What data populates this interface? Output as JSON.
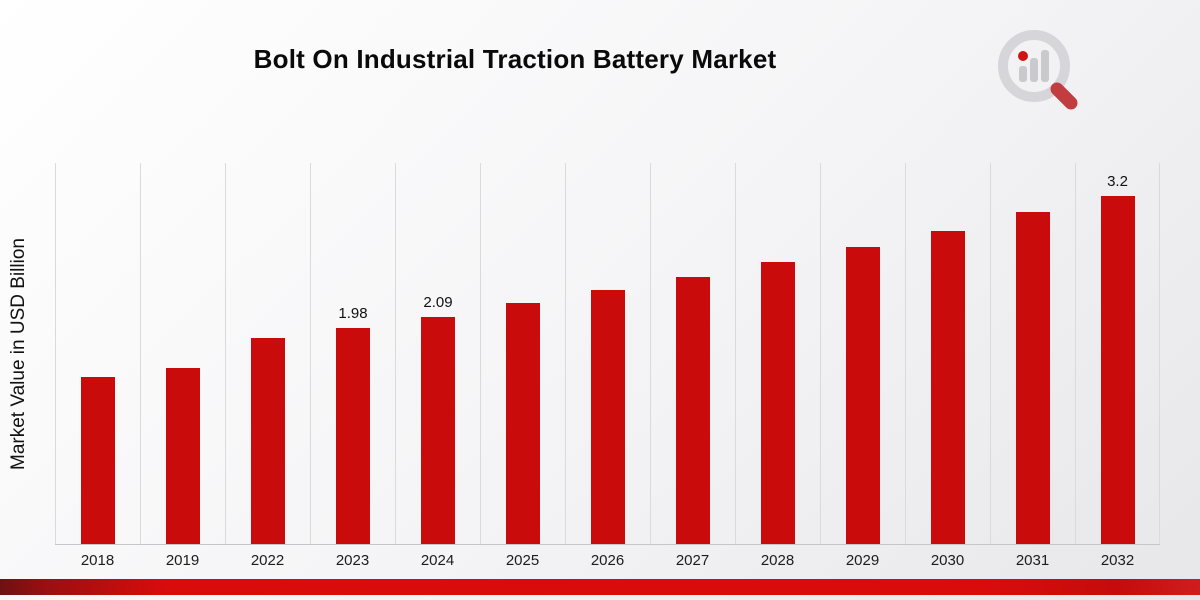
{
  "page": {
    "title": "Bolt On Industrial Traction Battery Market"
  },
  "logo": {
    "name": "magnifier-barchart-logo",
    "ring_color": "#d6d6da",
    "bar_color": "#c9c9ce",
    "accent_color": "#cf1414"
  },
  "colors": {
    "bar_red": "#c90b0b",
    "gridline": "#dadadd",
    "axis_line": "#c6c6c9",
    "footer_band_red": "#d90c0c"
  },
  "chart_data": {
    "type": "bar",
    "title": "Bolt On Industrial Traction Battery Market",
    "xlabel": "",
    "ylabel": "Market Value in USD Billion",
    "categories": [
      "2018",
      "2019",
      "2022",
      "2023",
      "2024",
      "2025",
      "2026",
      "2027",
      "2028",
      "2029",
      "2030",
      "2031",
      "2032"
    ],
    "values": [
      1.53,
      1.62,
      1.89,
      1.98,
      2.09,
      2.21,
      2.33,
      2.45,
      2.59,
      2.73,
      2.88,
      3.05,
      3.2
    ],
    "value_labels": [
      "",
      "",
      "",
      "1.98",
      "2.09",
      "",
      "",
      "",
      "",
      "",
      "",
      "",
      "3.2"
    ],
    "ylim": [
      0,
      3.5
    ],
    "bar_color": "#c90b0b",
    "grid": "vertical-separators",
    "legend": "none"
  }
}
